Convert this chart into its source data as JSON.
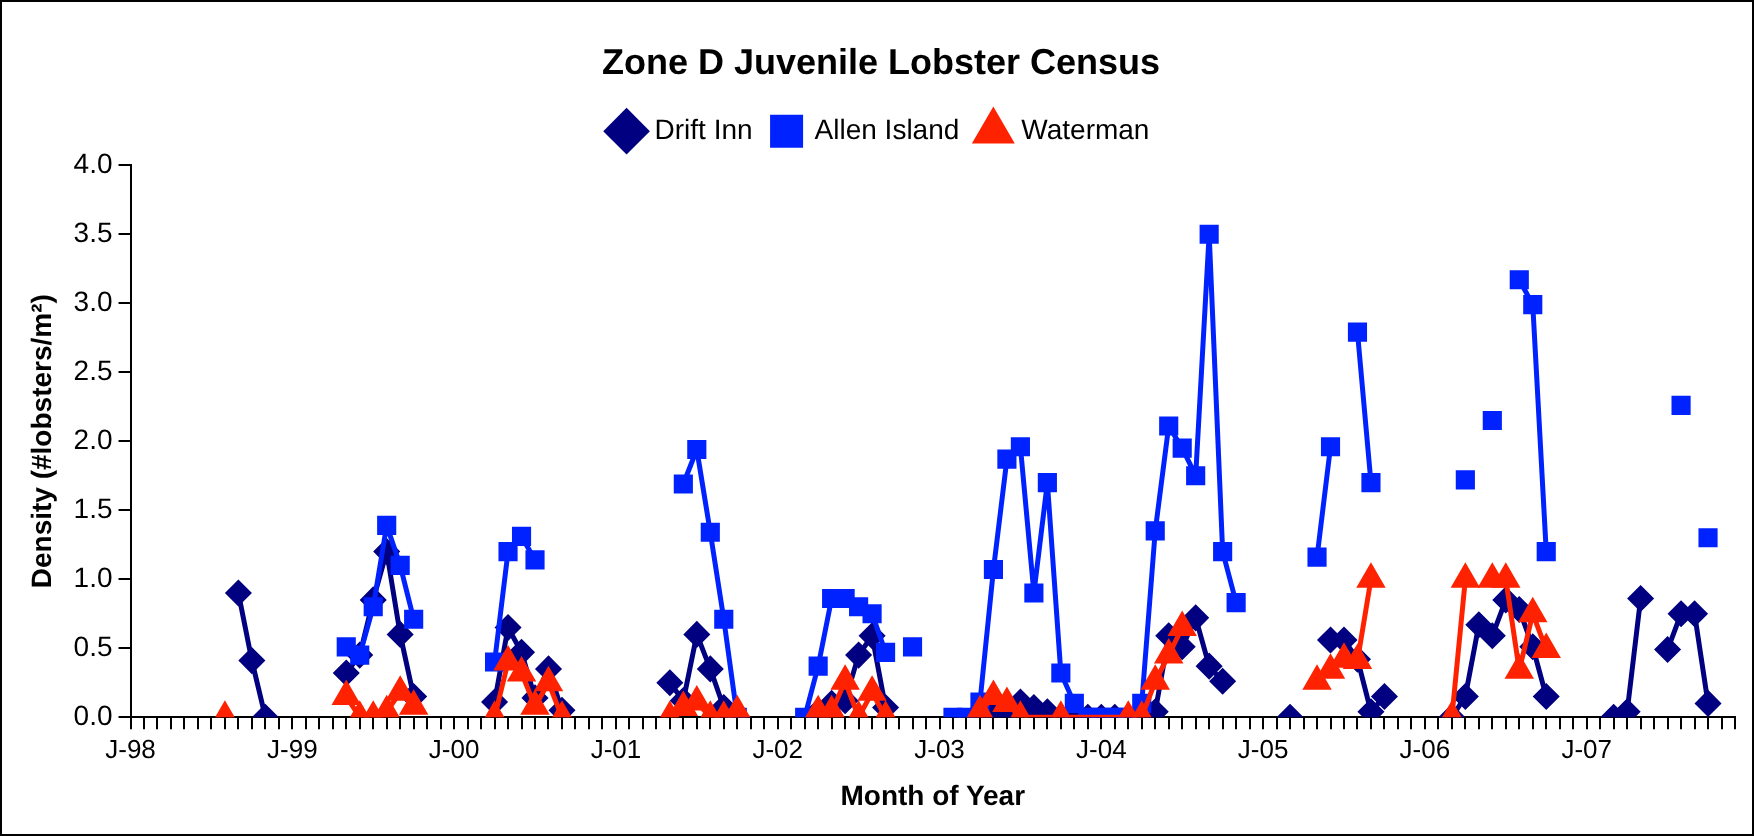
{
  "chart_data": {
    "type": "line",
    "title": "Zone D Juvenile Lobster Census",
    "xlabel": "Month of Year",
    "ylabel": "Density (#lobsters/m²)",
    "xlim": [
      "1998-01",
      "2007-12"
    ],
    "xticks": [
      {
        "value": "1998-01",
        "label": "J-98"
      },
      {
        "value": "1998-02",
        "label": null
      },
      {
        "value": "1998-03",
        "label": null
      },
      {
        "value": "1998-04",
        "label": null
      },
      {
        "value": "1998-05",
        "label": null
      },
      {
        "value": "1998-06",
        "label": null
      },
      {
        "value": "1998-07",
        "label": null
      },
      {
        "value": "1998-08",
        "label": null
      },
      {
        "value": "1998-09",
        "label": null
      },
      {
        "value": "1998-10",
        "label": null
      },
      {
        "value": "1998-11",
        "label": null
      },
      {
        "value": "1998-12",
        "label": null
      },
      {
        "value": "1999-01",
        "label": "J-99"
      },
      {
        "value": "1999-02",
        "label": null
      },
      {
        "value": "1999-03",
        "label": null
      },
      {
        "value": "1999-04",
        "label": null
      },
      {
        "value": "1999-05",
        "label": null
      },
      {
        "value": "1999-06",
        "label": null
      },
      {
        "value": "1999-07",
        "label": null
      },
      {
        "value": "1999-08",
        "label": null
      },
      {
        "value": "1999-09",
        "label": null
      },
      {
        "value": "1999-10",
        "label": null
      },
      {
        "value": "1999-11",
        "label": null
      },
      {
        "value": "1999-12",
        "label": null
      },
      {
        "value": "2000-01",
        "label": "J-00"
      },
      {
        "value": "2000-02",
        "label": null
      },
      {
        "value": "2000-03",
        "label": null
      },
      {
        "value": "2000-04",
        "label": null
      },
      {
        "value": "2000-05",
        "label": null
      },
      {
        "value": "2000-06",
        "label": null
      },
      {
        "value": "2000-07",
        "label": null
      },
      {
        "value": "2000-08",
        "label": null
      },
      {
        "value": "2000-09",
        "label": null
      },
      {
        "value": "2000-10",
        "label": null
      },
      {
        "value": "2000-11",
        "label": null
      },
      {
        "value": "2000-12",
        "label": null
      },
      {
        "value": "2001-01",
        "label": "J-01"
      },
      {
        "value": "2001-02",
        "label": null
      },
      {
        "value": "2001-03",
        "label": null
      },
      {
        "value": "2001-04",
        "label": null
      },
      {
        "value": "2001-05",
        "label": null
      },
      {
        "value": "2001-06",
        "label": null
      },
      {
        "value": "2001-07",
        "label": null
      },
      {
        "value": "2001-08",
        "label": null
      },
      {
        "value": "2001-09",
        "label": null
      },
      {
        "value": "2001-10",
        "label": null
      },
      {
        "value": "2001-11",
        "label": null
      },
      {
        "value": "2001-12",
        "label": null
      },
      {
        "value": "2002-01",
        "label": "J-02"
      },
      {
        "value": "2002-02",
        "label": null
      },
      {
        "value": "2002-03",
        "label": null
      },
      {
        "value": "2002-04",
        "label": null
      },
      {
        "value": "2002-05",
        "label": null
      },
      {
        "value": "2002-06",
        "label": null
      },
      {
        "value": "2002-07",
        "label": null
      },
      {
        "value": "2002-08",
        "label": null
      },
      {
        "value": "2002-09",
        "label": null
      },
      {
        "value": "2002-10",
        "label": null
      },
      {
        "value": "2002-11",
        "label": null
      },
      {
        "value": "2002-12",
        "label": null
      },
      {
        "value": "2003-01",
        "label": "J-03"
      },
      {
        "value": "2003-02",
        "label": null
      },
      {
        "value": "2003-03",
        "label": null
      },
      {
        "value": "2003-04",
        "label": null
      },
      {
        "value": "2003-05",
        "label": null
      },
      {
        "value": "2003-06",
        "label": null
      },
      {
        "value": "2003-07",
        "label": null
      },
      {
        "value": "2003-08",
        "label": null
      },
      {
        "value": "2003-09",
        "label": null
      },
      {
        "value": "2003-10",
        "label": null
      },
      {
        "value": "2003-11",
        "label": null
      },
      {
        "value": "2003-12",
        "label": null
      },
      {
        "value": "2004-01",
        "label": "J-04"
      },
      {
        "value": "2004-02",
        "label": null
      },
      {
        "value": "2004-03",
        "label": null
      },
      {
        "value": "2004-04",
        "label": null
      },
      {
        "value": "2004-05",
        "label": null
      },
      {
        "value": "2004-06",
        "label": null
      },
      {
        "value": "2004-07",
        "label": null
      },
      {
        "value": "2004-08",
        "label": null
      },
      {
        "value": "2004-09",
        "label": null
      },
      {
        "value": "2004-10",
        "label": null
      },
      {
        "value": "2004-11",
        "label": null
      },
      {
        "value": "2004-12",
        "label": null
      },
      {
        "value": "2005-01",
        "label": "J-05"
      },
      {
        "value": "2005-02",
        "label": null
      },
      {
        "value": "2005-03",
        "label": null
      },
      {
        "value": "2005-04",
        "label": null
      },
      {
        "value": "2005-05",
        "label": null
      },
      {
        "value": "2005-06",
        "label": null
      },
      {
        "value": "2005-07",
        "label": null
      },
      {
        "value": "2005-08",
        "label": null
      },
      {
        "value": "2005-09",
        "label": null
      },
      {
        "value": "2005-10",
        "label": null
      },
      {
        "value": "2005-11",
        "label": null
      },
      {
        "value": "2005-12",
        "label": null
      },
      {
        "value": "2006-01",
        "label": "J-06"
      },
      {
        "value": "2006-02",
        "label": null
      },
      {
        "value": "2006-03",
        "label": null
      },
      {
        "value": "2006-04",
        "label": null
      },
      {
        "value": "2006-05",
        "label": null
      },
      {
        "value": "2006-06",
        "label": null
      },
      {
        "value": "2006-07",
        "label": null
      },
      {
        "value": "2006-08",
        "label": null
      },
      {
        "value": "2006-09",
        "label": null
      },
      {
        "value": "2006-10",
        "label": null
      },
      {
        "value": "2006-11",
        "label": null
      },
      {
        "value": "2006-12",
        "label": null
      },
      {
        "value": "2007-01",
        "label": "J-07"
      },
      {
        "value": "2007-02",
        "label": null
      },
      {
        "value": "2007-03",
        "label": null
      },
      {
        "value": "2007-04",
        "label": null
      },
      {
        "value": "2007-05",
        "label": null
      },
      {
        "value": "2007-06",
        "label": null
      },
      {
        "value": "2007-07",
        "label": null
      },
      {
        "value": "2007-08",
        "label": null
      },
      {
        "value": "2007-09",
        "label": null
      },
      {
        "value": "2007-10",
        "label": null
      },
      {
        "value": "2007-11",
        "label": null
      },
      {
        "value": "2007-12",
        "label": null
      }
    ],
    "ylim": [
      0,
      4
    ],
    "yticks": [
      {
        "value": 0,
        "label": "0.0"
      },
      {
        "value": 0.5,
        "label": "0.5"
      },
      {
        "value": 1,
        "label": "1.0"
      },
      {
        "value": 1.5,
        "label": "1.5"
      },
      {
        "value": 2,
        "label": "2.0"
      },
      {
        "value": 2.5,
        "label": "2.5"
      },
      {
        "value": 3,
        "label": "3.0"
      },
      {
        "value": 3.5,
        "label": "3.5"
      },
      {
        "value": 4,
        "label": "4.0"
      }
    ],
    "grid": false,
    "legend": "top",
    "line_style": "solid",
    "series": [
      {
        "name": "Drift Inn",
        "color": "#000080",
        "marker": "diamond",
        "x": [
          "1998-09",
          "1998-10",
          "1998-11",
          "1999-01",
          "1999-05",
          "1999-06",
          "1999-07",
          "1999-08",
          "1999-09",
          "1999-10",
          "2000-01",
          "2000-04",
          "2000-05",
          "2000-06",
          "2000-07",
          "2000-08",
          "2000-09",
          "2001-01",
          "2001-05",
          "2001-06",
          "2001-07",
          "2001-08",
          "2001-09",
          "2001-10",
          "2002-01",
          "2002-04",
          "2002-05",
          "2002-06",
          "2002-07",
          "2002-08",
          "2002-09",
          "2003-01",
          "2003-04",
          "2003-05",
          "2003-06",
          "2003-07",
          "2003-08",
          "2003-09",
          "2003-10",
          "2003-11",
          "2003-12",
          "2004-01",
          "2004-02",
          "2004-03",
          "2004-04",
          "2004-05",
          "2004-06",
          "2004-07",
          "2004-08",
          "2004-09",
          "2004-10",
          "2005-01",
          "2005-03",
          "2005-04",
          "2005-06",
          "2005-07",
          "2005-08",
          "2005-09",
          "2005-10",
          "2006-01",
          "2006-03",
          "2006-04",
          "2006-05",
          "2006-06",
          "2006-07",
          "2006-08",
          "2006-09",
          "2006-10",
          "2007-01",
          "2007-03",
          "2007-04",
          "2007-05",
          "2007-06",
          "2007-07",
          "2007-08",
          "2007-09",
          "2007-10"
        ],
        "values": [
          0.9,
          0.41,
          0,
          null,
          0.32,
          0.45,
          0.85,
          1.2,
          0.6,
          0.15,
          null,
          0.11,
          0.65,
          0.47,
          0.14,
          0.35,
          0.05,
          null,
          0.25,
          0.12,
          0.6,
          0.35,
          0.07,
          0,
          null,
          0.04,
          0.1,
          0.12,
          0.45,
          0.59,
          0.07,
          null,
          0.04,
          0.04,
          0.04,
          0.11,
          0.07,
          0.04,
          0,
          0,
          0,
          0,
          0,
          0,
          0,
          0.04,
          0.59,
          0.51,
          0.72,
          0.37,
          0.26,
          null,
          0,
          null,
          0.56,
          0.56,
          0.42,
          0.04,
          0.15,
          null,
          0,
          0.15,
          0.67,
          0.59,
          0.85,
          0.78,
          0.51,
          0.15,
          null,
          0,
          0.04,
          0.86,
          null,
          0.49,
          0.75,
          0.75,
          0.1
        ]
      },
      {
        "name": "Allen Island",
        "color": "#0022ff",
        "marker": "square",
        "x": [
          "1999-05",
          "1999-06",
          "1999-07",
          "1999-08",
          "1999-09",
          "1999-10",
          "2000-01",
          "2000-04",
          "2000-05",
          "2000-06",
          "2000-07",
          "2001-01",
          "2001-06",
          "2001-07",
          "2001-08",
          "2001-09",
          "2001-10",
          "2002-01",
          "2002-03",
          "2002-04",
          "2002-05",
          "2002-06",
          "2002-07",
          "2002-08",
          "2002-09",
          "2002-10",
          "2002-11",
          "2003-01",
          "2003-02",
          "2003-03",
          "2003-04",
          "2003-05",
          "2003-06",
          "2003-07",
          "2003-08",
          "2003-09",
          "2003-10",
          "2003-11",
          "2003-12",
          "2004-01",
          "2004-02",
          "2004-03",
          "2004-04",
          "2004-05",
          "2004-06",
          "2004-07",
          "2004-08",
          "2004-09",
          "2004-10",
          "2004-11",
          "2005-01",
          "2005-05",
          "2005-06",
          "2005-07",
          "2005-08",
          "2005-09",
          "2006-01",
          "2006-04",
          "2006-05",
          "2006-06",
          "2006-07",
          "2006-08",
          "2006-09",
          "2006-10",
          "2007-01",
          "2007-08",
          "2007-09",
          "2007-10"
        ],
        "values": [
          0.51,
          0.45,
          0.8,
          1.39,
          1.1,
          0.71,
          null,
          0.4,
          1.2,
          1.31,
          1.14,
          null,
          1.69,
          1.94,
          1.34,
          0.71,
          0,
          null,
          0,
          0.37,
          0.86,
          0.86,
          0.8,
          0.75,
          0.47,
          null,
          0.51,
          null,
          0,
          0,
          0.11,
          1.07,
          1.87,
          1.96,
          0.9,
          1.7,
          0.32,
          0.1,
          0,
          0,
          0,
          0,
          0.1,
          1.35,
          2.11,
          1.95,
          1.75,
          3.5,
          1.2,
          0.83,
          null,
          1.16,
          1.96,
          null,
          2.79,
          1.7,
          null,
          1.72,
          null,
          2.15,
          null,
          3.17,
          2.99,
          1.2,
          null,
          2.26,
          null,
          1.3
        ]
      },
      {
        "name": "Waterman",
        "color": "#ff2200",
        "marker": "triangle",
        "x": [
          "1998-08",
          "1999-01",
          "1999-05",
          "1999-06",
          "1999-07",
          "1999-08",
          "1999-09",
          "1999-10",
          "2000-01",
          "2000-04",
          "2000-05",
          "2000-06",
          "2000-07",
          "2000-08",
          "2000-09",
          "2001-01",
          "2001-05",
          "2001-06",
          "2001-07",
          "2001-08",
          "2001-09",
          "2001-10",
          "2002-01",
          "2002-04",
          "2002-05",
          "2002-06",
          "2002-07",
          "2002-08",
          "2002-09",
          "2003-01",
          "2003-04",
          "2003-05",
          "2003-06",
          "2003-07",
          "2003-10",
          "2004-03",
          "2004-04",
          "2004-05",
          "2004-06",
          "2004-07",
          "2005-01",
          "2005-05",
          "2005-06",
          "2005-07",
          "2005-08",
          "2005-09",
          "2006-01",
          "2006-03",
          "2006-04",
          "2006-05",
          "2006-06",
          "2006-07",
          "2006-08",
          "2006-09",
          "2006-10"
        ],
        "values": [
          0,
          null,
          0.15,
          0,
          0,
          0.04,
          0.18,
          0.08,
          null,
          0,
          0.4,
          0.32,
          0.08,
          0.25,
          0,
          null,
          0,
          0.07,
          0.11,
          0,
          0,
          0.04,
          null,
          0.04,
          0.04,
          0.26,
          0,
          0.18,
          0,
          null,
          0.04,
          0.15,
          0.1,
          0,
          0,
          0,
          0,
          0.26,
          0.45,
          0.65,
          null,
          0.26,
          0.34,
          0.42,
          0.41,
          1,
          null,
          0,
          1,
          null,
          1,
          1,
          0.34,
          0.75,
          0.49
        ]
      }
    ]
  }
}
